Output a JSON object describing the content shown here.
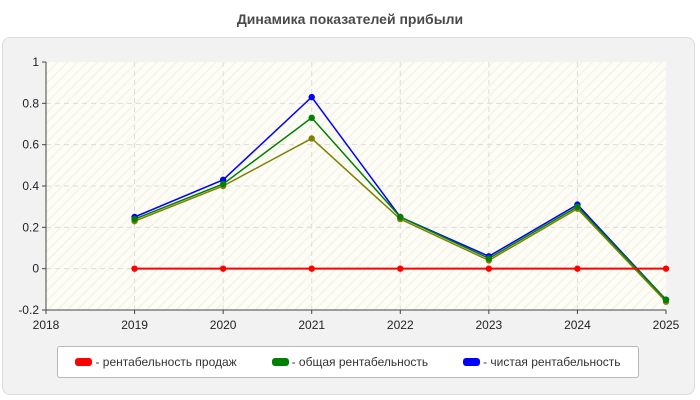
{
  "chart_data": {
    "type": "line",
    "title": "Динамика показателей прибыли",
    "xlabel": "",
    "ylabel": "",
    "xlim": [
      2018,
      2025
    ],
    "ylim": [
      -0.2,
      1
    ],
    "x_ticks": [
      "2018",
      "2019",
      "2020",
      "2021",
      "2022",
      "2023",
      "2024",
      "2025"
    ],
    "y_ticks": [
      "1",
      "0.8",
      "0.6",
      "0.4",
      "0.2",
      "0",
      "-0.2"
    ],
    "grid": true,
    "legend_position": "bottom",
    "series": [
      {
        "name": "- рентабельность продаж",
        "color": "#ff0000",
        "x": [
          2019,
          2020,
          2021,
          2022,
          2023,
          2024,
          2025
        ],
        "values": [
          0,
          0,
          0,
          0,
          0,
          0,
          0
        ]
      },
      {
        "name": "- общая рентабельность",
        "color": "#008000",
        "x": [
          2019,
          2020,
          2021,
          2022,
          2023,
          2024,
          2025
        ],
        "values": [
          0.24,
          0.41,
          0.73,
          0.25,
          0.05,
          0.3,
          -0.15
        ]
      },
      {
        "name": "- чистая рентабельность",
        "color": "#0000ff",
        "x": [
          2019,
          2020,
          2021,
          2022,
          2023,
          2024,
          2025
        ],
        "values": [
          0.25,
          0.43,
          0.83,
          0.25,
          0.06,
          0.31,
          -0.15
        ]
      },
      {
        "color": "#808000",
        "x": [
          2019,
          2020,
          2021,
          2022,
          2023,
          2024,
          2025
        ],
        "values": [
          0.23,
          0.4,
          0.63,
          0.24,
          0.04,
          0.29,
          -0.16
        ]
      }
    ]
  }
}
